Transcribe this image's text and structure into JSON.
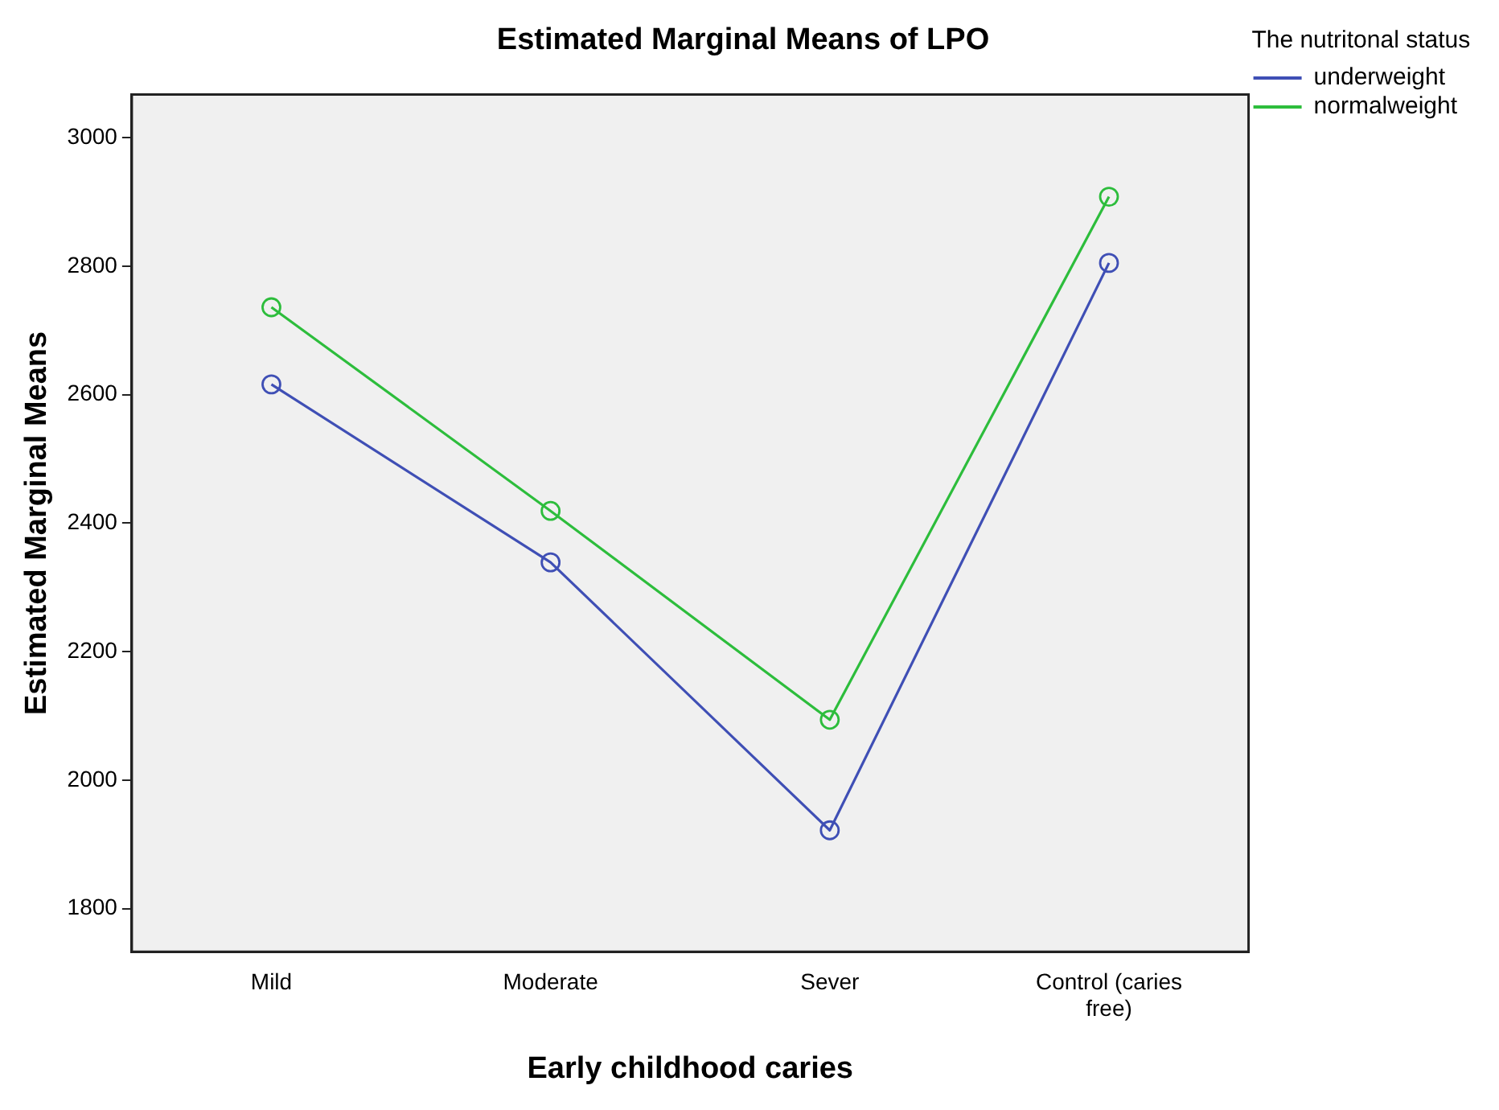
{
  "chart_data": {
    "type": "line",
    "title": "Estimated Marginal Means of LPO",
    "xlabel": "Early childhood caries",
    "ylabel": "Estimated Marginal Means",
    "legend_title": "The nutritonal status",
    "categories": [
      "Mild",
      "Moderate",
      "Sever",
      "Control (caries free)"
    ],
    "series": [
      {
        "name": "underweight",
        "color": "#3f4fb5",
        "values": [
          2616,
          2339,
          1922,
          2805
        ]
      },
      {
        "name": "normalweight",
        "color": "#2dbd3c",
        "values": [
          2736,
          2419,
          2094,
          2908
        ]
      }
    ],
    "ylim": [
      1733,
      3067
    ],
    "yticks": [
      1800,
      2000,
      2200,
      2400,
      2600,
      2800,
      3000
    ],
    "grid": false,
    "legend": "top right",
    "marker": "circle",
    "line_style": "solid"
  }
}
